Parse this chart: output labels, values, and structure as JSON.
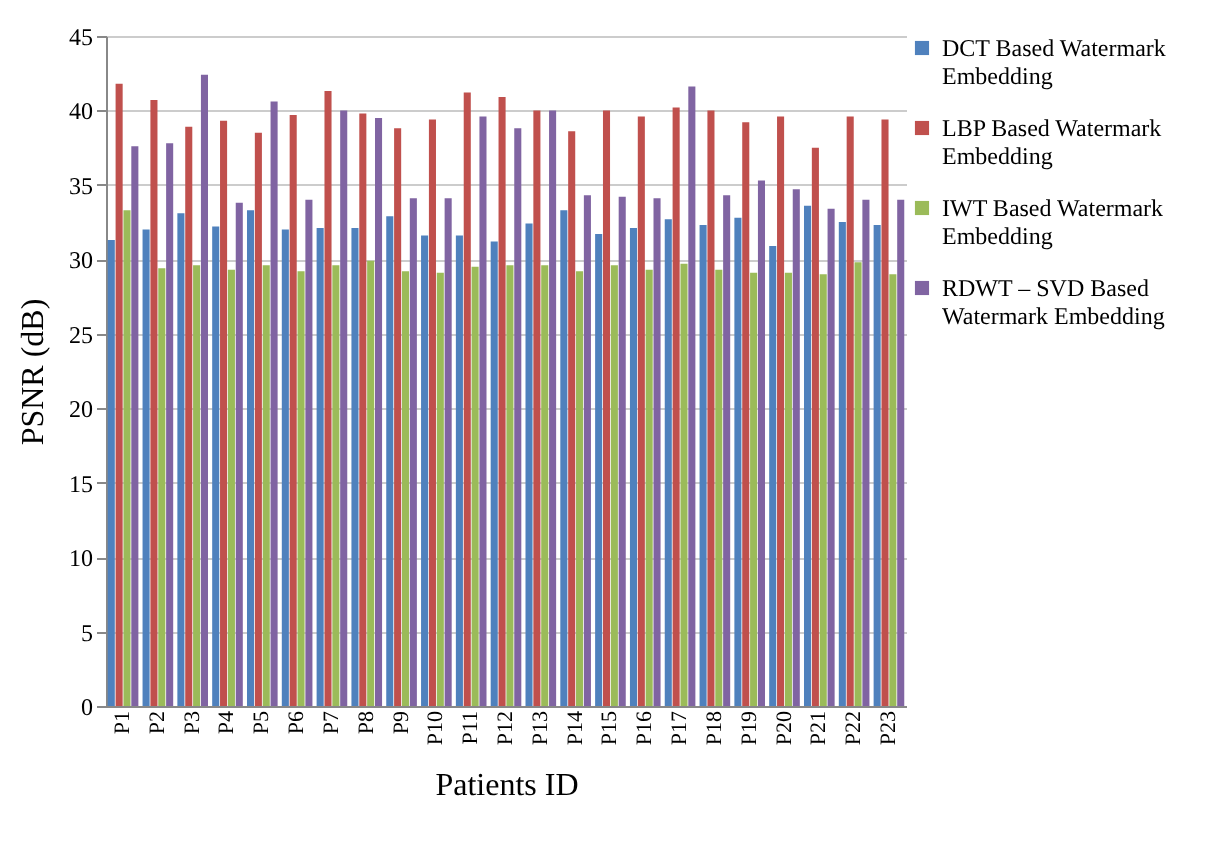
{
  "chart_data": {
    "type": "bar",
    "xlabel": "Patients ID",
    "ylabel": "PSNR (dB)",
    "categories": [
      "P1",
      "P2",
      "P3",
      "P4",
      "P5",
      "P6",
      "P7",
      "P8",
      "P9",
      "P10",
      "P11",
      "P12",
      "P13",
      "P14",
      "P15",
      "P16",
      "P17",
      "P18",
      "P19",
      "P20",
      "P21",
      "P22",
      "P23"
    ],
    "series": [
      {
        "name": "DCT Based Watermark Embedding",
        "color": "#4f81bd",
        "values": [
          31.3,
          32.0,
          33.1,
          32.2,
          33.3,
          32.0,
          32.1,
          32.1,
          32.9,
          31.6,
          31.6,
          31.2,
          32.4,
          33.3,
          31.7,
          32.1,
          32.7,
          32.3,
          32.8,
          30.9,
          33.6,
          32.5,
          32.3
        ]
      },
      {
        "name": "LBP Based Watermark Embedding",
        "color": "#c0504d",
        "values": [
          41.8,
          40.7,
          38.9,
          39.3,
          38.5,
          39.7,
          41.3,
          39.8,
          38.8,
          39.4,
          41.2,
          40.9,
          40.0,
          38.6,
          40.0,
          39.6,
          40.2,
          40.0,
          39.2,
          39.6,
          37.5,
          39.6,
          39.4
        ]
      },
      {
        "name": "IWT Based Watermark Embedding",
        "color": "#9bbb59",
        "values": [
          33.3,
          29.4,
          29.6,
          29.3,
          29.6,
          29.2,
          29.6,
          29.9,
          29.2,
          29.1,
          29.5,
          29.6,
          29.6,
          29.2,
          29.6,
          29.3,
          29.7,
          29.3,
          29.1,
          29.1,
          29.0,
          29.8,
          29.0
        ]
      },
      {
        "name": "RDWT – SVD Based Watermark Embedding",
        "color": "#8064a2",
        "values": [
          37.6,
          37.8,
          42.4,
          33.8,
          40.6,
          34.0,
          40.0,
          39.5,
          34.1,
          34.1,
          39.6,
          38.8,
          40.0,
          34.3,
          34.2,
          34.1,
          41.6,
          34.3,
          35.3,
          34.7,
          33.4,
          34.0,
          34.0
        ]
      }
    ],
    "ylim": [
      0,
      45
    ],
    "yticks": [
      0,
      5,
      10,
      15,
      20,
      25,
      30,
      35,
      40,
      45
    ],
    "grid": "y",
    "legend": "right"
  }
}
